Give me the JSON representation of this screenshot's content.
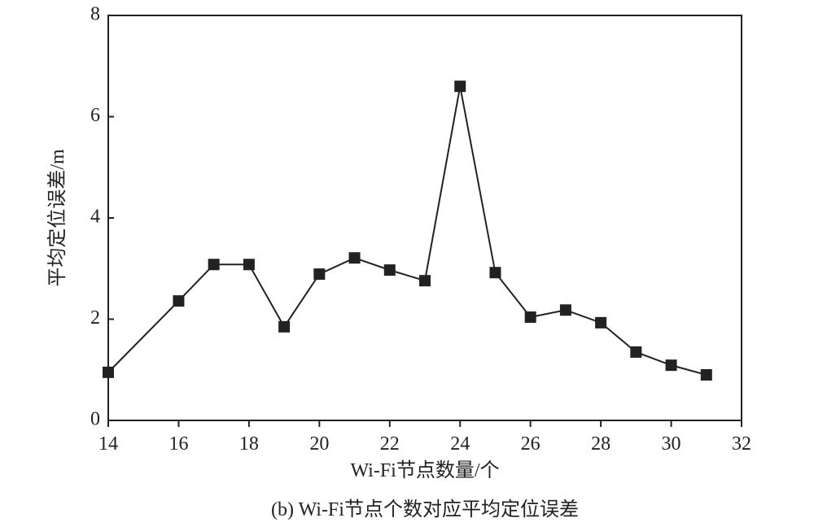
{
  "chart_data": {
    "type": "line",
    "caption": "(b) Wi-Fi节点个数对应平均定位误差",
    "x_label": "Wi-Fi节点数量/个",
    "y_label": "平均定位误差/m",
    "x": [
      14,
      16,
      17,
      18,
      19,
      20,
      21,
      22,
      23,
      24,
      25,
      26,
      27,
      28,
      29,
      30,
      31
    ],
    "series": [
      {
        "color": "#222222",
        "values": [
          0.95,
          2.36,
          3.08,
          3.08,
          1.85,
          2.89,
          3.21,
          2.97,
          2.76,
          6.6,
          2.92,
          2.04,
          2.18,
          1.93,
          1.35,
          1.09,
          0.9
        ]
      }
    ],
    "xlim": [
      14,
      32
    ],
    "xticks": [
      14,
      16,
      18,
      20,
      22,
      24,
      26,
      28,
      30,
      32
    ],
    "ylim": [
      0,
      8
    ],
    "yticks": [
      0,
      2,
      4,
      6,
      8
    ],
    "grid": false
  }
}
